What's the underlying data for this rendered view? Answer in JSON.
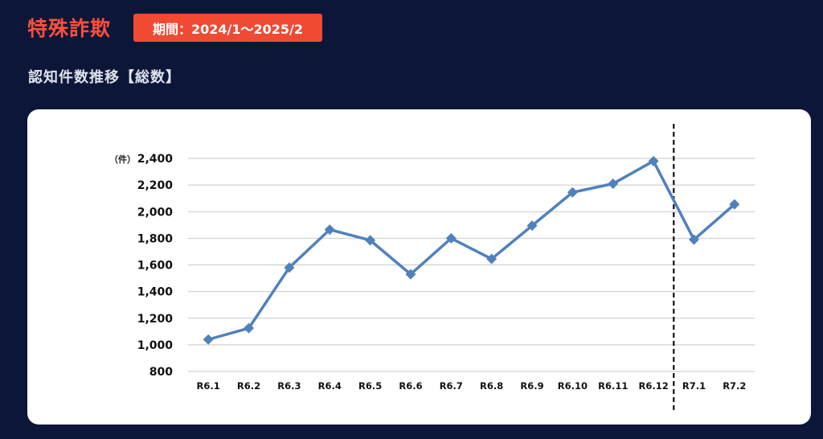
{
  "header": {
    "title": "特殊詐欺",
    "period_badge": "期間：2024/1～2025/2",
    "subtitle": "認知件数推移【総数】"
  },
  "chart_data": {
    "type": "line",
    "unit_label": "（件）",
    "categories": [
      "R6.1",
      "R6.2",
      "R6.3",
      "R6.4",
      "R6.5",
      "R6.6",
      "R6.7",
      "R6.8",
      "R6.9",
      "R6.10",
      "R6.11",
      "R6.12",
      "R7.1",
      "R7.2"
    ],
    "series": [
      {
        "values": [
          1040,
          1125,
          1580,
          1865,
          1785,
          1530,
          1800,
          1645,
          1895,
          2145,
          2210,
          2380,
          1790,
          2055
        ],
        "color": "#4f81bd",
        "marker": "diamond"
      }
    ],
    "ylim": [
      800,
      2400
    ],
    "yticks": [
      800,
      1000,
      1200,
      1400,
      1600,
      1800,
      2000,
      2200,
      2400
    ],
    "ytick_labels": [
      "800",
      "1,000",
      "1,200",
      "1,400",
      "1,600",
      "1,800",
      "2,000",
      "2,200",
      "2,400"
    ],
    "grid": true,
    "divider_after_category": "R6.12",
    "divider_style": "dashed"
  },
  "colors": {
    "background": "#0b1638",
    "title": "#ff4f3a",
    "badge": "#f04a33",
    "line": "#4f81bd",
    "grid": "#c8c8c8"
  }
}
